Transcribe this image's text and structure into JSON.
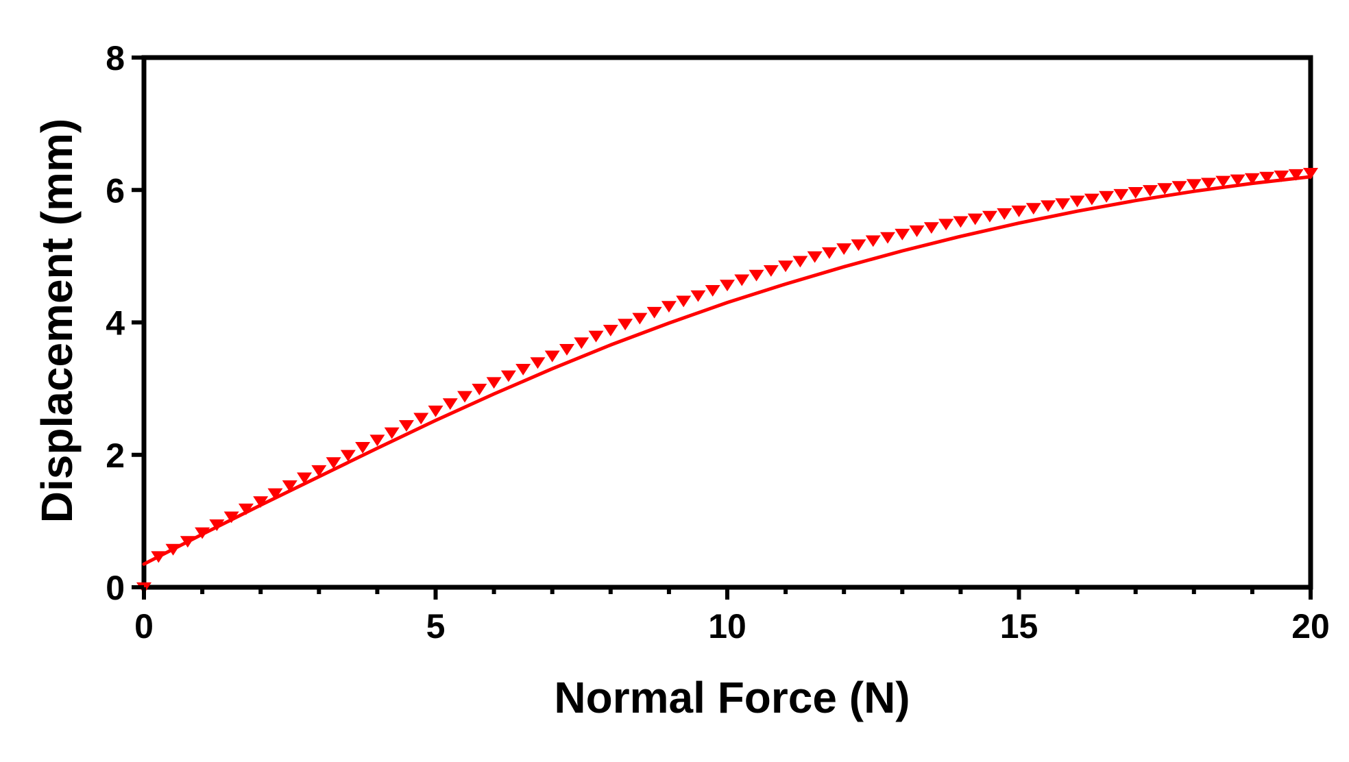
{
  "chart_data": {
    "type": "line",
    "title": "",
    "xlabel": "Normal Force (N)",
    "ylabel": "Displacement (mm)",
    "xlim": [
      0,
      20
    ],
    "ylim": [
      0,
      8
    ],
    "x_major_ticks": [
      0,
      5,
      10,
      15,
      20
    ],
    "x_tick_labels": [
      "0",
      "5",
      "10",
      "15",
      "20"
    ],
    "x_minor_step": 1,
    "y_major_ticks": [
      0,
      2,
      4,
      6,
      8
    ],
    "y_tick_labels": [
      "0",
      "2",
      "4",
      "6",
      "8"
    ],
    "grid": false,
    "legend": "none",
    "series": [
      {
        "marker": "triangle-down",
        "color": "#ff0000",
        "x": [
          0,
          0.25,
          0.5,
          0.75,
          1,
          1.25,
          1.5,
          1.75,
          2,
          2.25,
          2.5,
          2.75,
          3,
          3.25,
          3.5,
          3.75,
          4,
          4.25,
          4.5,
          4.75,
          5,
          5.25,
          5.5,
          5.75,
          6,
          6.25,
          6.5,
          6.75,
          7,
          7.25,
          7.5,
          7.75,
          8,
          8.25,
          8.5,
          8.75,
          9,
          9.25,
          9.5,
          9.75,
          10,
          10.25,
          10.5,
          10.75,
          11,
          11.25,
          11.5,
          11.75,
          12,
          12.25,
          12.5,
          12.75,
          13,
          13.25,
          13.5,
          13.75,
          14,
          14.25,
          14.5,
          14.75,
          15,
          15.25,
          15.5,
          15.75,
          16,
          16.25,
          16.5,
          16.75,
          17,
          17.25,
          17.5,
          17.75,
          18,
          18.25,
          18.5,
          18.75,
          19,
          19.25,
          19.5,
          19.75,
          20
        ],
        "y": [
          0.0,
          0.47,
          0.58,
          0.7,
          0.83,
          0.95,
          1.07,
          1.19,
          1.3,
          1.42,
          1.54,
          1.66,
          1.77,
          1.89,
          2.0,
          2.12,
          2.23,
          2.34,
          2.45,
          2.56,
          2.67,
          2.78,
          2.89,
          3.0,
          3.1,
          3.2,
          3.3,
          3.4,
          3.5,
          3.6,
          3.7,
          3.8,
          3.89,
          3.98,
          4.07,
          4.16,
          4.25,
          4.33,
          4.41,
          4.49,
          4.57,
          4.65,
          4.72,
          4.79,
          4.86,
          4.93,
          5.0,
          5.06,
          5.12,
          5.18,
          5.24,
          5.29,
          5.34,
          5.39,
          5.44,
          5.49,
          5.53,
          5.57,
          5.61,
          5.65,
          5.69,
          5.73,
          5.77,
          5.8,
          5.84,
          5.87,
          5.91,
          5.94,
          5.97,
          6.0,
          6.03,
          6.06,
          6.09,
          6.11,
          6.14,
          6.16,
          6.18,
          6.2,
          6.22,
          6.24,
          6.26
        ]
      },
      {
        "style": "fit-line",
        "color": "#ff0000",
        "x": [
          0,
          1,
          2,
          3,
          4,
          5,
          6,
          7,
          8,
          9,
          10,
          11,
          12,
          13,
          14,
          15,
          16,
          17,
          18,
          19,
          20
        ],
        "y": [
          0.35,
          0.8,
          1.24,
          1.67,
          2.1,
          2.52,
          2.92,
          3.3,
          3.66,
          3.99,
          4.3,
          4.58,
          4.84,
          5.08,
          5.3,
          5.5,
          5.68,
          5.84,
          5.98,
          6.1,
          6.2
        ]
      }
    ]
  }
}
